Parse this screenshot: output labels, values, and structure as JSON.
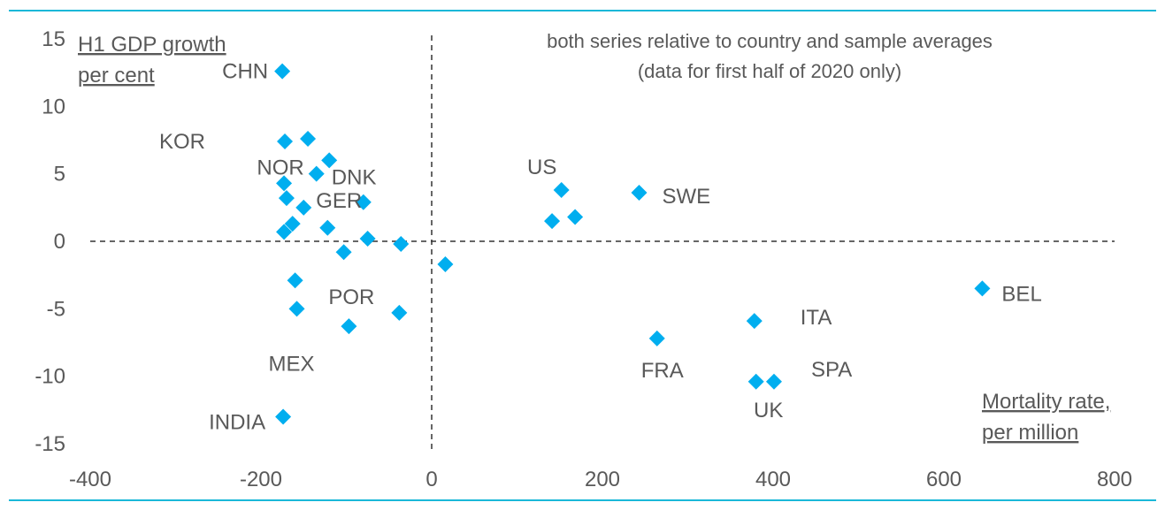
{
  "chart_data": {
    "type": "scatter",
    "title_lines": [
      "both series relative to country and sample averages",
      "(data for first half of 2020 only)"
    ],
    "ylabel_lines": [
      "H1 GDP growth",
      "per cent"
    ],
    "xlabel_lines": [
      "Mortality rate,",
      "per million"
    ],
    "xlim": [
      -400,
      800
    ],
    "ylim": [
      -15,
      15
    ],
    "xticks": [
      "-400",
      "-200",
      "0",
      "200",
      "400",
      "600",
      "800"
    ],
    "yticks": [
      "15",
      "10",
      "5",
      "0",
      "-5",
      "-10",
      "-15"
    ],
    "reference_lines": {
      "x": 0,
      "y": 0,
      "style": "dashed"
    },
    "grid": false,
    "marker": "diamond",
    "color": "#00AEEF",
    "frame_color": "#1BB8D8",
    "points": [
      {
        "x": -175,
        "y": 12.6,
        "label": "CHN"
      },
      {
        "x": -172,
        "y": 7.4,
        "label": "KOR"
      },
      {
        "x": -145,
        "y": 7.6
      },
      {
        "x": -120,
        "y": 6.0
      },
      {
        "x": -135,
        "y": 5.0
      },
      {
        "x": -173,
        "y": 4.3,
        "label": "NOR"
      },
      {
        "x": -170,
        "y": 3.2
      },
      {
        "x": -150,
        "y": 2.5,
        "label": "GER"
      },
      {
        "x": -80,
        "y": 2.9,
        "label": "DNK"
      },
      {
        "x": -163,
        "y": 1.3
      },
      {
        "x": -173,
        "y": 0.7
      },
      {
        "x": -122,
        "y": 1.0
      },
      {
        "x": -75,
        "y": 0.2
      },
      {
        "x": -36,
        "y": -0.2
      },
      {
        "x": -103,
        "y": -0.8
      },
      {
        "x": 16,
        "y": -1.7
      },
      {
        "x": -160,
        "y": -2.9
      },
      {
        "x": -158,
        "y": -5.0,
        "label": "MEX"
      },
      {
        "x": -97,
        "y": -6.3
      },
      {
        "x": -38,
        "y": -5.3,
        "label": "POR"
      },
      {
        "x": -174,
        "y": -13.0,
        "label": "INDIA"
      },
      {
        "x": 152,
        "y": 3.8,
        "label": "US"
      },
      {
        "x": 141,
        "y": 1.5
      },
      {
        "x": 168,
        "y": 1.8
      },
      {
        "x": 243,
        "y": 3.6,
        "label": "SWE"
      },
      {
        "x": 264,
        "y": -7.2,
        "label": "FRA"
      },
      {
        "x": 378,
        "y": -5.9,
        "label": "ITA"
      },
      {
        "x": 380,
        "y": -10.4,
        "label": "UK"
      },
      {
        "x": 401,
        "y": -10.4,
        "label": "SPA"
      },
      {
        "x": 645,
        "y": -3.5,
        "label": "BEL"
      }
    ]
  }
}
